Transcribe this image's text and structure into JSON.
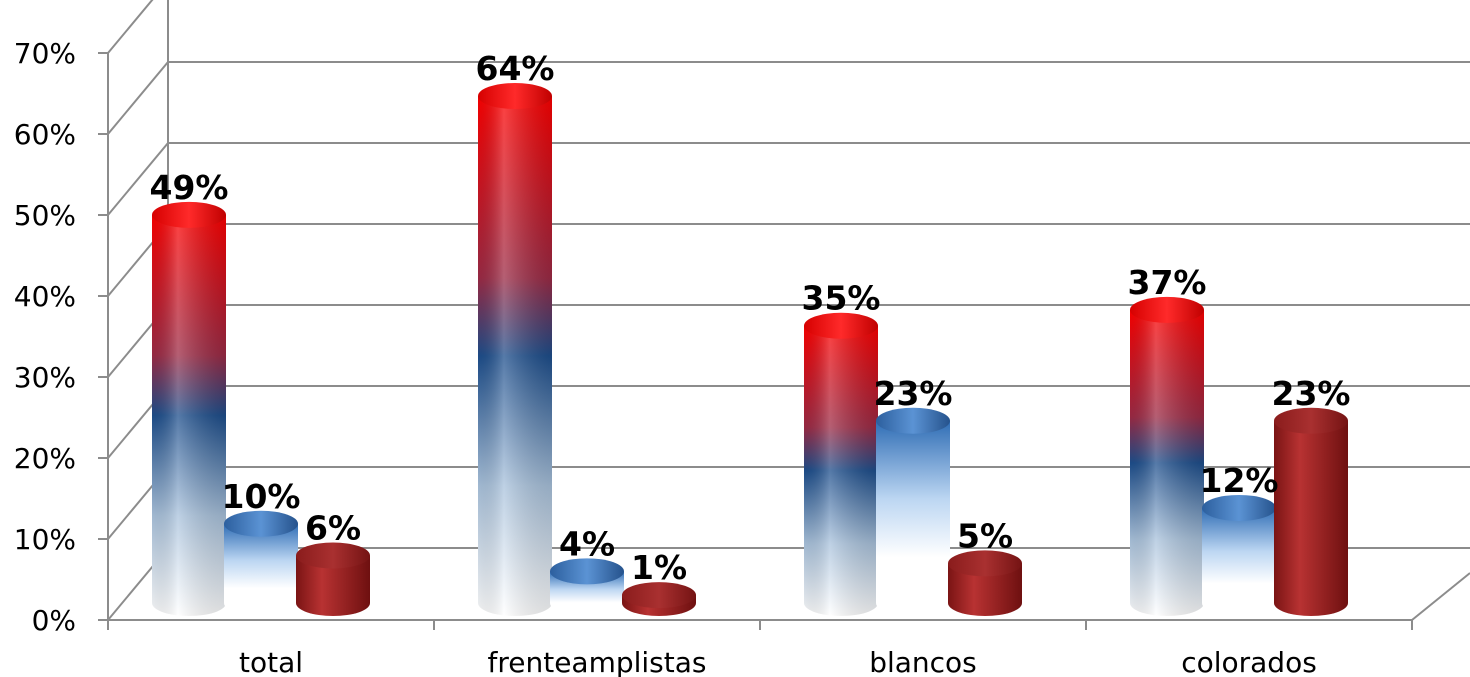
{
  "chart_data": {
    "type": "bar",
    "style": "3d-cylinder",
    "title": "",
    "xlabel": "",
    "ylabel": "",
    "categories": [
      "total",
      "frenteamplistas",
      "blancos",
      "colorados"
    ],
    "series": [
      {
        "values": [
          49,
          64,
          35,
          37
        ],
        "labels": [
          "49%",
          "64%",
          "35%",
          "37%"
        ],
        "colors": [
          "#ff0000",
          "#9c2a45",
          "#1d4e8c",
          "#ffffff"
        ]
      },
      {
        "values": [
          10,
          4,
          23,
          12
        ],
        "labels": [
          "10%",
          "4%",
          "23%",
          "12%"
        ],
        "colors": [
          "#2f6db5",
          "#8fb8e6",
          "#ffffff",
          "#ffffff"
        ]
      },
      {
        "values": [
          6,
          1,
          5,
          23
        ],
        "labels": [
          "6%",
          "1%",
          "5%",
          "23%"
        ],
        "colors": [
          "#8b1a1a",
          "#b23232",
          "#a02424",
          "#7a1515"
        ]
      }
    ],
    "y_ticks": [
      "0%",
      "10%",
      "20%",
      "30%",
      "40%",
      "50%",
      "60%",
      "70%"
    ],
    "ylim": [
      0,
      70
    ],
    "grid": true,
    "legend": "none"
  }
}
